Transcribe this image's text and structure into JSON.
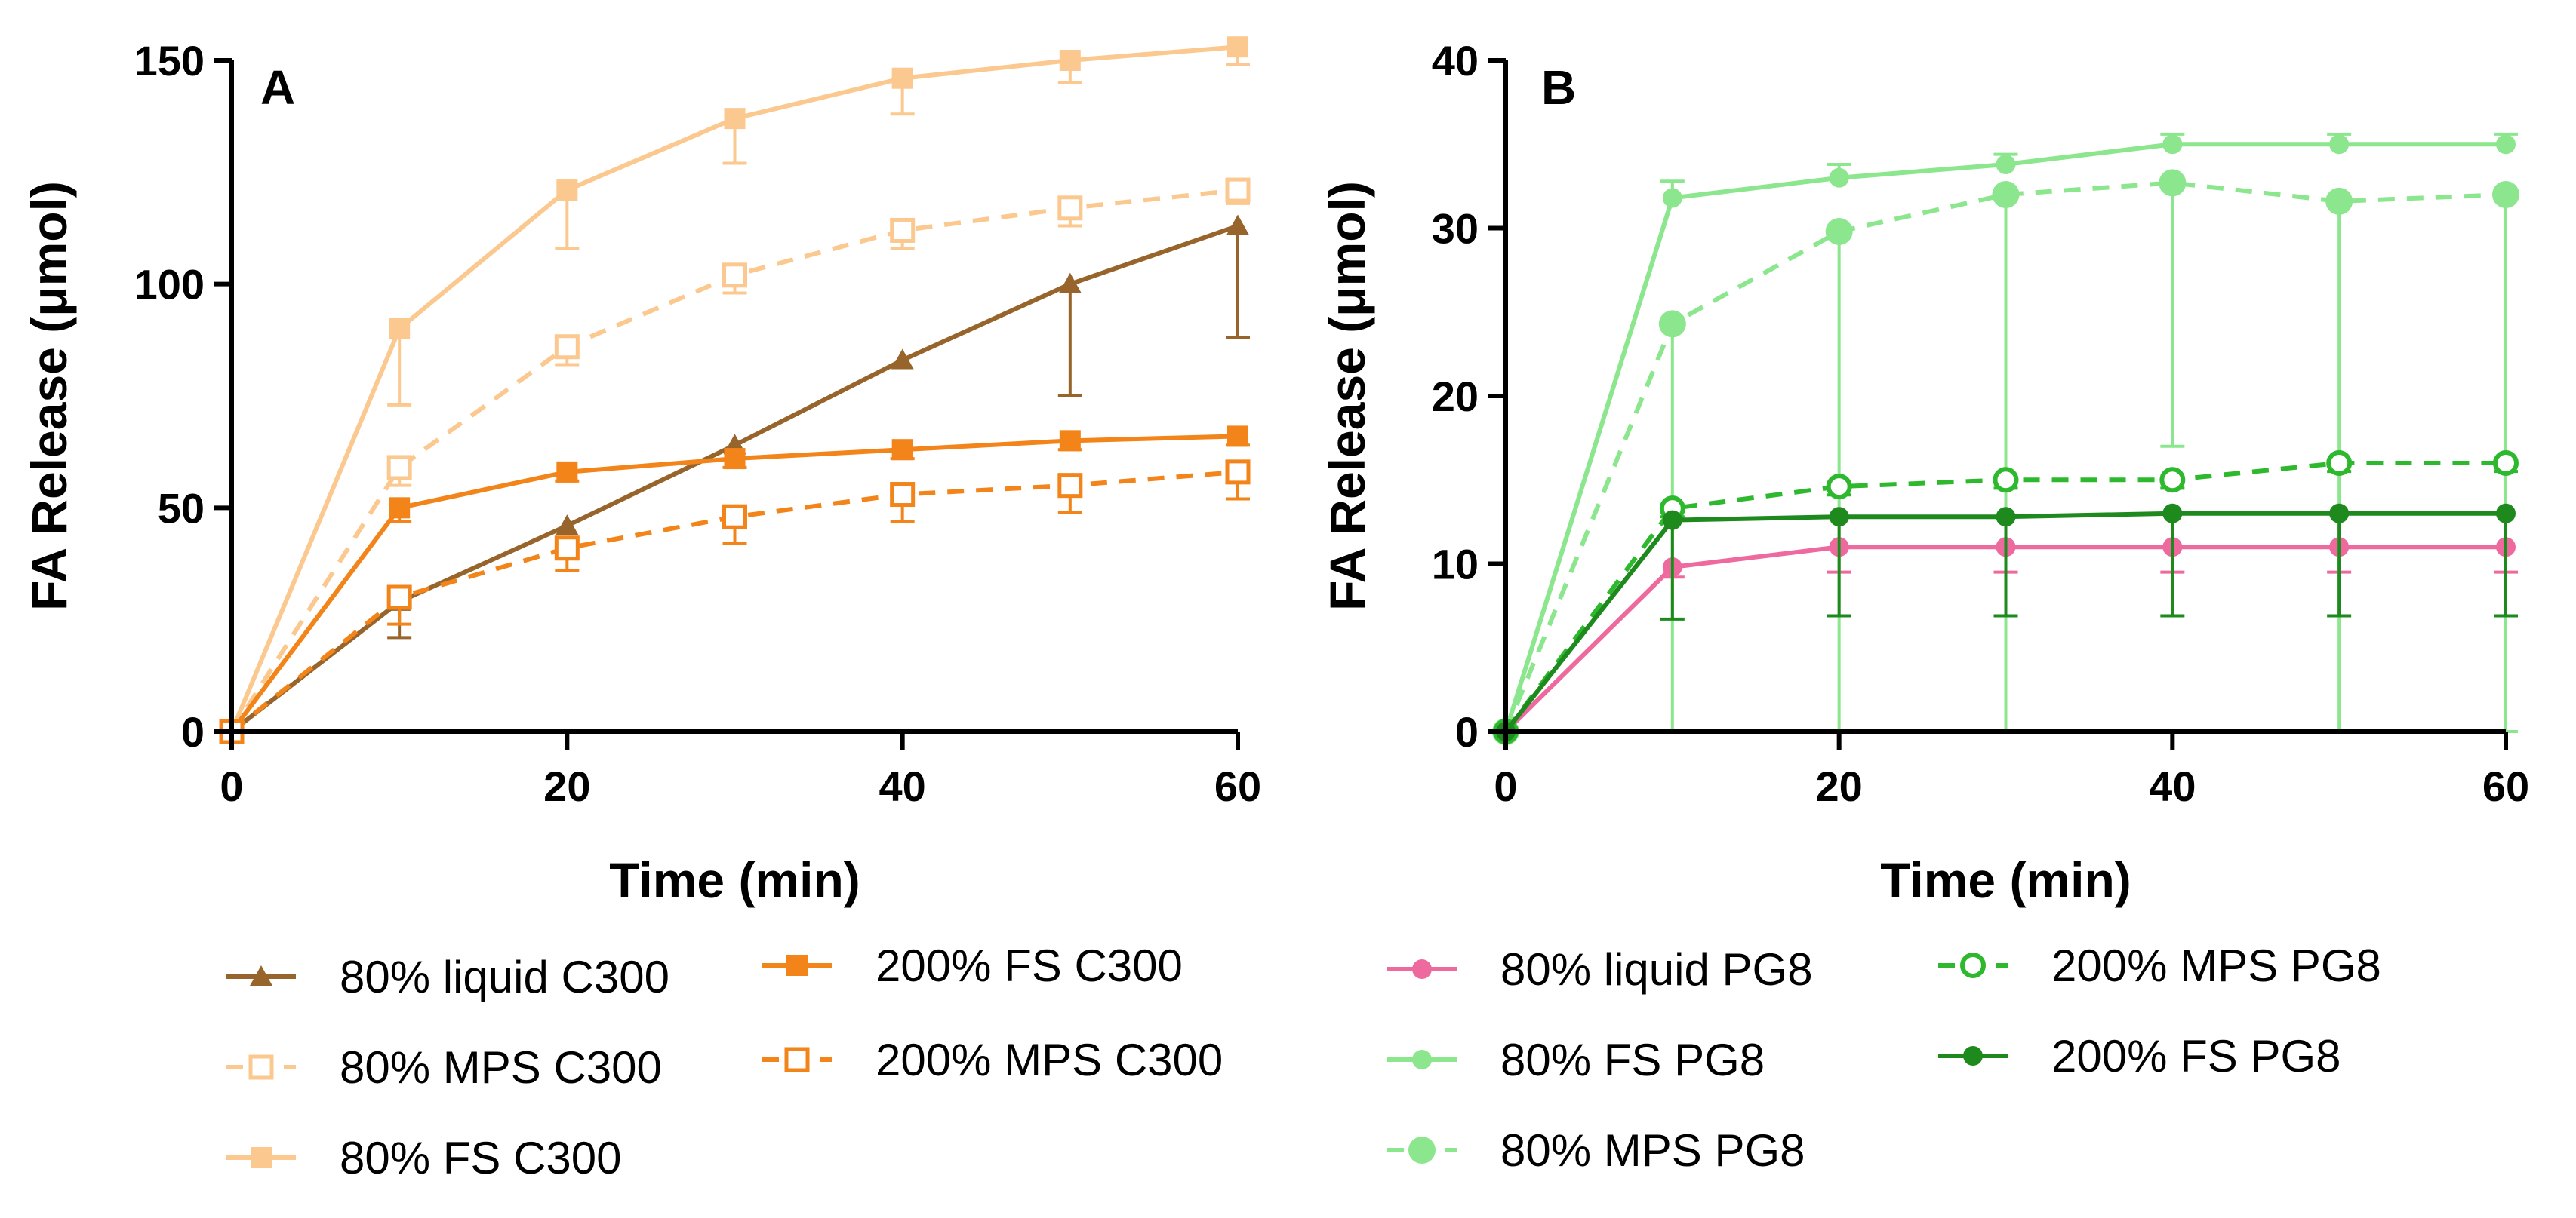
{
  "chart_data": [
    {
      "type": "line",
      "panel_label": "A",
      "xlabel": "Time (min)",
      "ylabel": "FA Release (μmol)",
      "xlim": [
        0,
        60
      ],
      "ylim": [
        0,
        150
      ],
      "x_ticks": [
        0,
        20,
        40,
        60
      ],
      "y_ticks": [
        0,
        50,
        100,
        150
      ],
      "grid": false,
      "legend_position": "bottom",
      "series": [
        {
          "name": "80% liquid C300",
          "color": "#97652B",
          "marker": "triangle",
          "dash": "solid",
          "x": [
            0,
            10,
            20,
            30,
            40,
            50,
            60
          ],
          "values": [
            0,
            29,
            46,
            64,
            83,
            100,
            113
          ],
          "error": [
            0,
            8,
            0,
            0,
            0,
            25,
            25
          ],
          "error_dir": "down"
        },
        {
          "name": "80% MPS C300",
          "color": "#FBC98F",
          "marker": "open-square",
          "dash": "dashed",
          "x": [
            0,
            10,
            20,
            30,
            40,
            50,
            60
          ],
          "values": [
            0,
            59,
            86,
            102,
            112,
            117,
            121
          ],
          "error": [
            0,
            4,
            4,
            4,
            4,
            4,
            3
          ],
          "error_dir": "down"
        },
        {
          "name": "80% FS C300",
          "color": "#FBC98F",
          "marker": "square",
          "dash": "solid",
          "x": [
            0,
            10,
            20,
            30,
            40,
            50,
            60
          ],
          "values": [
            0,
            90,
            121,
            137,
            146,
            150,
            153
          ],
          "error": [
            0,
            17,
            13,
            10,
            8,
            5,
            4
          ],
          "error_dir": "down"
        },
        {
          "name": "200% FS C300",
          "color": "#F28419",
          "marker": "square",
          "dash": "solid",
          "x": [
            0,
            10,
            20,
            30,
            40,
            50,
            60
          ],
          "values": [
            0,
            50,
            58,
            61,
            63,
            65,
            66
          ],
          "error": [
            0,
            3,
            2,
            2,
            2,
            2,
            2
          ],
          "error_dir": "down"
        },
        {
          "name": "200% MPS C300",
          "color": "#F28419",
          "marker": "open-square",
          "dash": "dashed",
          "x": [
            0,
            10,
            20,
            30,
            40,
            50,
            60
          ],
          "values": [
            0,
            30,
            41,
            48,
            53,
            55,
            58
          ],
          "error": [
            0,
            6,
            5,
            6,
            6,
            6,
            6
          ],
          "error_dir": "down"
        }
      ]
    },
    {
      "type": "line",
      "panel_label": "B",
      "xlabel": "Time (min)",
      "ylabel": "FA Release (μmol)",
      "xlim": [
        0,
        60
      ],
      "ylim": [
        0,
        40
      ],
      "x_ticks": [
        0,
        20,
        40,
        60
      ],
      "y_ticks": [
        0,
        10,
        20,
        30,
        40
      ],
      "grid": false,
      "legend_position": "bottom",
      "series": [
        {
          "name": "80% liquid PG8",
          "color": "#EE6A9E",
          "marker": "circle",
          "dash": "solid",
          "x": [
            0,
            10,
            20,
            30,
            40,
            50,
            60
          ],
          "values": [
            0,
            9.8,
            11,
            11,
            11,
            11,
            11
          ],
          "error": [
            0,
            0.6,
            1.5,
            1.5,
            1.5,
            1.5,
            1.5
          ],
          "error_dir": "down"
        },
        {
          "name": "80% FS PG8",
          "color": "#8CE68E",
          "marker": "circle",
          "dash": "solid",
          "x": [
            0,
            10,
            20,
            30,
            40,
            50,
            60
          ],
          "values": [
            0,
            31.8,
            33,
            33.8,
            35,
            35,
            35
          ],
          "error": [
            0,
            1,
            0.8,
            0.6,
            0.6,
            0.6,
            0.6
          ],
          "error_dir": "up"
        },
        {
          "name": "80% MPS PG8",
          "color": "#8CE68E",
          "marker": "circle-large",
          "dash": "dashed",
          "x": [
            0,
            10,
            20,
            30,
            40,
            50,
            60
          ],
          "values": [
            0,
            24.3,
            29.8,
            32,
            32.7,
            31.6,
            32
          ],
          "error": [
            0,
            24.3,
            29.8,
            32,
            15.7,
            31.6,
            32
          ],
          "error_dir": "down"
        },
        {
          "name": "200% MPS PG8",
          "color": "#2DB82D",
          "marker": "open-circle",
          "dash": "dashed",
          "x": [
            0,
            10,
            20,
            30,
            40,
            50,
            60
          ],
          "values": [
            0,
            13.3,
            14.6,
            15,
            15,
            16,
            16
          ],
          "error": [
            0,
            0.5,
            0.5,
            0.5,
            0.5,
            0.5,
            0.5
          ],
          "error_dir": "down"
        },
        {
          "name": "200% FS PG8",
          "color": "#1E8A1E",
          "marker": "circle",
          "dash": "solid",
          "x": [
            0,
            10,
            20,
            30,
            40,
            50,
            60
          ],
          "values": [
            0,
            12.6,
            12.8,
            12.8,
            13,
            13,
            13
          ],
          "error": [
            0,
            5.9,
            5.9,
            5.9,
            6.1,
            6.1,
            6.1
          ],
          "error_dir": "down"
        }
      ]
    }
  ]
}
